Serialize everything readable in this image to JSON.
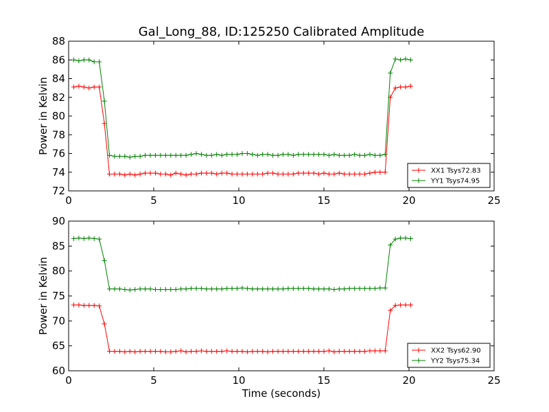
{
  "title": "Gal_Long_88, ID:125250 Calibrated Amplitude",
  "colors": {
    "red": "#ff0000",
    "green": "#008000"
  },
  "chart_data": [
    {
      "type": "line",
      "xlabel": "",
      "ylabel": "Power in Kelvin",
      "xlim": [
        0,
        25
      ],
      "ylim": [
        72,
        88
      ],
      "xticks": [
        0,
        5,
        10,
        15,
        20,
        25
      ],
      "yticks": [
        72,
        74,
        76,
        78,
        80,
        82,
        84,
        86,
        88
      ],
      "grid": false,
      "legend_position": "lower-right",
      "x": [
        0.3,
        0.6,
        0.9,
        1.2,
        1.5,
        1.8,
        2.1,
        2.4,
        2.7,
        3.0,
        3.3,
        3.6,
        3.9,
        4.2,
        4.5,
        4.8,
        5.1,
        5.4,
        5.7,
        6.0,
        6.3,
        6.6,
        6.9,
        7.2,
        7.5,
        7.8,
        8.1,
        8.4,
        8.7,
        9.0,
        9.3,
        9.6,
        9.9,
        10.2,
        10.5,
        10.8,
        11.1,
        11.4,
        11.7,
        12.0,
        12.3,
        12.6,
        12.9,
        13.2,
        13.5,
        13.8,
        14.1,
        14.4,
        14.7,
        15.0,
        15.3,
        15.6,
        15.9,
        16.2,
        16.5,
        16.8,
        17.1,
        17.4,
        17.7,
        18.0,
        18.3,
        18.6,
        18.9,
        19.2,
        19.5,
        19.8,
        20.1
      ],
      "series": [
        {
          "name": "XX1 Tsys72.83",
          "color": "#ff0000",
          "values": [
            83.1,
            83.2,
            83.1,
            83.0,
            83.1,
            83.1,
            79.2,
            73.8,
            73.8,
            73.8,
            73.7,
            73.8,
            73.7,
            73.8,
            73.9,
            73.9,
            73.9,
            73.8,
            73.8,
            73.7,
            73.9,
            73.8,
            73.7,
            73.8,
            73.8,
            73.9,
            73.9,
            73.9,
            73.8,
            73.9,
            73.9,
            73.8,
            73.8,
            73.8,
            73.8,
            73.8,
            73.8,
            73.8,
            73.9,
            73.9,
            73.8,
            73.8,
            73.8,
            73.8,
            73.9,
            73.9,
            73.9,
            73.9,
            73.8,
            73.9,
            73.8,
            73.8,
            73.9,
            73.8,
            73.8,
            73.8,
            73.8,
            73.8,
            73.9,
            74.0,
            74.0,
            74.0,
            82.0,
            83.0,
            83.1,
            83.1,
            83.2
          ]
        },
        {
          "name": "YY1 Tsys74.95",
          "color": "#008000",
          "values": [
            86.0,
            85.9,
            86.0,
            86.0,
            85.8,
            85.8,
            81.6,
            75.8,
            75.7,
            75.7,
            75.7,
            75.6,
            75.7,
            75.7,
            75.8,
            75.8,
            75.8,
            75.8,
            75.8,
            75.8,
            75.8,
            75.8,
            75.8,
            75.9,
            76.0,
            75.9,
            75.8,
            75.8,
            75.9,
            75.8,
            75.9,
            75.9,
            75.9,
            76.0,
            76.0,
            75.9,
            75.8,
            75.9,
            75.9,
            75.8,
            75.8,
            75.9,
            75.9,
            75.8,
            75.9,
            75.9,
            75.9,
            75.9,
            75.9,
            75.9,
            75.8,
            75.9,
            75.8,
            75.8,
            75.8,
            75.9,
            75.8,
            75.8,
            75.9,
            75.8,
            75.8,
            75.9,
            84.6,
            86.1,
            86.0,
            86.1,
            86.0
          ]
        }
      ]
    },
    {
      "type": "line",
      "xlabel": "Time (seconds)",
      "ylabel": "Power in Kelvin",
      "xlim": [
        0,
        25
      ],
      "ylim": [
        60,
        90
      ],
      "xticks": [
        0,
        5,
        10,
        15,
        20,
        25
      ],
      "yticks": [
        60,
        65,
        70,
        75,
        80,
        85,
        90
      ],
      "grid": false,
      "legend_position": "lower-right",
      "x": [
        0.3,
        0.6,
        0.9,
        1.2,
        1.5,
        1.8,
        2.1,
        2.4,
        2.7,
        3.0,
        3.3,
        3.6,
        3.9,
        4.2,
        4.5,
        4.8,
        5.1,
        5.4,
        5.7,
        6.0,
        6.3,
        6.6,
        6.9,
        7.2,
        7.5,
        7.8,
        8.1,
        8.4,
        8.7,
        9.0,
        9.3,
        9.6,
        9.9,
        10.2,
        10.5,
        10.8,
        11.1,
        11.4,
        11.7,
        12.0,
        12.3,
        12.6,
        12.9,
        13.2,
        13.5,
        13.8,
        14.1,
        14.4,
        14.7,
        15.0,
        15.3,
        15.6,
        15.9,
        16.2,
        16.5,
        16.8,
        17.1,
        17.4,
        17.7,
        18.0,
        18.3,
        18.6,
        18.9,
        19.2,
        19.5,
        19.8,
        20.1
      ],
      "series": [
        {
          "name": "XX2 Tsys62.90",
          "color": "#ff0000",
          "values": [
            73.2,
            73.2,
            73.1,
            73.1,
            73.1,
            73.0,
            69.4,
            63.9,
            63.9,
            63.9,
            63.8,
            63.9,
            63.8,
            63.9,
            63.9,
            63.9,
            63.9,
            63.9,
            63.8,
            63.8,
            63.9,
            64.0,
            63.8,
            63.9,
            63.9,
            64.0,
            63.9,
            63.9,
            63.9,
            63.9,
            64.0,
            63.9,
            63.9,
            63.9,
            63.8,
            63.9,
            63.9,
            63.9,
            63.8,
            63.9,
            63.9,
            63.9,
            63.9,
            63.9,
            63.9,
            63.9,
            63.9,
            63.9,
            63.9,
            63.9,
            64.0,
            63.8,
            63.9,
            63.9,
            63.9,
            63.9,
            63.9,
            63.9,
            64.0,
            64.0,
            64.0,
            64.0,
            72.1,
            73.1,
            73.2,
            73.2,
            73.2
          ]
        },
        {
          "name": "YY2 Tsys75.34",
          "color": "#008000",
          "values": [
            86.5,
            86.6,
            86.5,
            86.6,
            86.5,
            86.4,
            82.1,
            76.4,
            76.4,
            76.4,
            76.3,
            76.2,
            76.3,
            76.4,
            76.4,
            76.4,
            76.3,
            76.3,
            76.3,
            76.3,
            76.3,
            76.4,
            76.4,
            76.5,
            76.5,
            76.5,
            76.4,
            76.4,
            76.4,
            76.4,
            76.5,
            76.5,
            76.5,
            76.6,
            76.5,
            76.4,
            76.4,
            76.4,
            76.4,
            76.4,
            76.4,
            76.4,
            76.5,
            76.5,
            76.5,
            76.5,
            76.5,
            76.4,
            76.4,
            76.4,
            76.4,
            76.3,
            76.4,
            76.4,
            76.5,
            76.5,
            76.5,
            76.5,
            76.5,
            76.5,
            76.6,
            76.6,
            85.2,
            86.4,
            86.6,
            86.6,
            86.5
          ]
        }
      ]
    }
  ]
}
